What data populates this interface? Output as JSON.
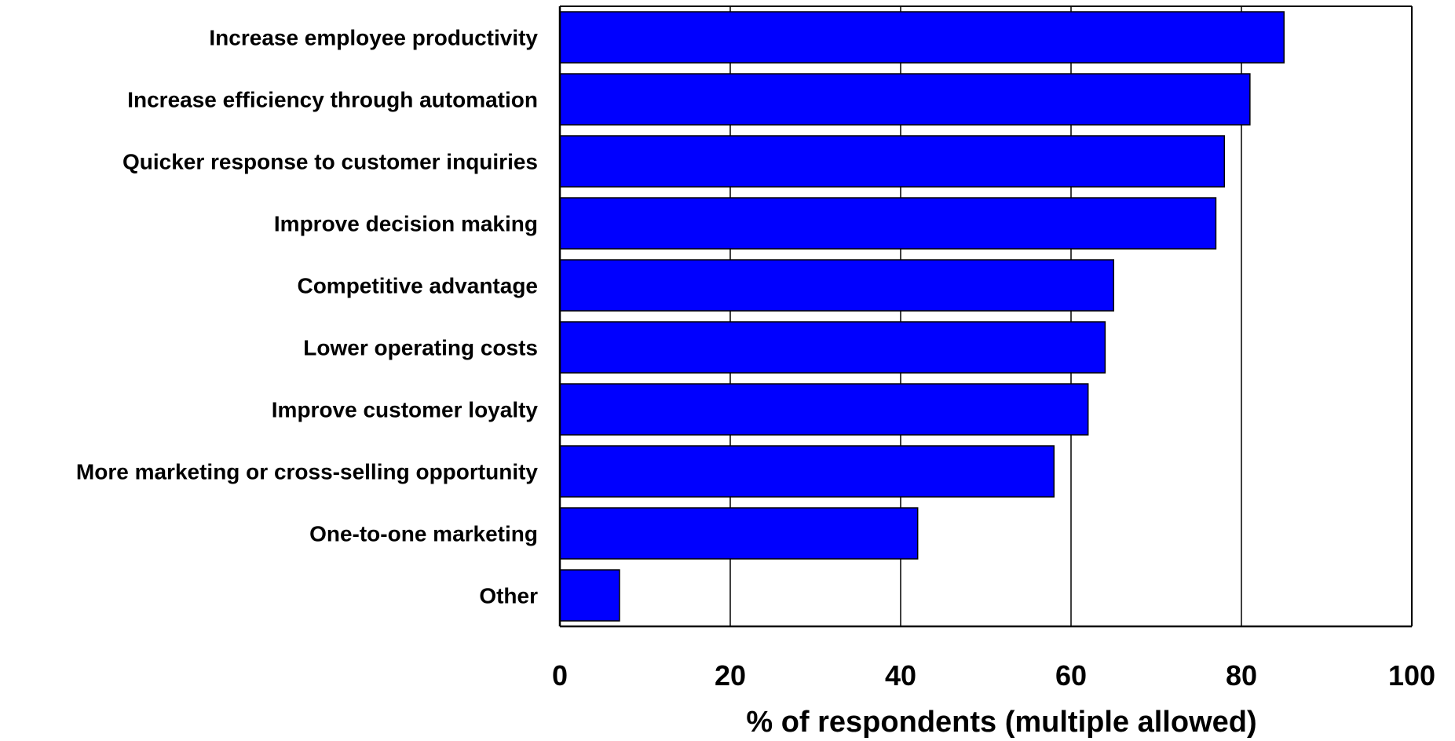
{
  "chart_data": {
    "type": "bar",
    "orientation": "horizontal",
    "title": "",
    "xlabel": "% of respondents  (multiple allowed)",
    "ylabel": "",
    "categories": [
      "Increase employee productivity",
      "Increase efficiency through automation",
      "Quicker response to customer inquiries",
      "Improve decision making",
      "Competitive advantage",
      "Lower operating costs",
      "Improve customer loyalty",
      "More marketing or cross-selling opportunity",
      "One-to-one marketing",
      "Other"
    ],
    "values": [
      85,
      81,
      78,
      77,
      65,
      64,
      62,
      58,
      42,
      7
    ],
    "xlim": [
      0,
      100
    ],
    "xticks": [
      0,
      20,
      40,
      60,
      80,
      100
    ],
    "xtick_labels": [
      "0",
      "20",
      "40",
      "60",
      "80",
      "100"
    ],
    "grid": "vertical",
    "legend": "none",
    "bar_color": "#0000ff",
    "bar_edge_color": "#000000",
    "grid_color": "#000000"
  }
}
